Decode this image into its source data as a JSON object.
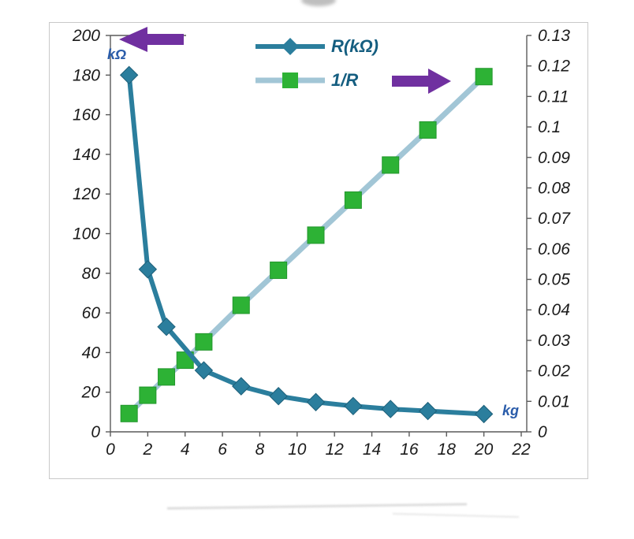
{
  "chart_data": {
    "type": "line",
    "title": "",
    "x_axis": {
      "label": "kg",
      "min": 0,
      "max": 22,
      "tick_labels": [
        "0",
        "2",
        "4",
        "6",
        "8",
        "10",
        "12",
        "14",
        "16",
        "18",
        "20",
        "22"
      ]
    },
    "left_axis": {
      "label": "kΩ",
      "min": 0,
      "max": 200,
      "tick_labels": [
        "0",
        "20",
        "40",
        "60",
        "80",
        "100",
        "120",
        "140",
        "160",
        "180",
        "200"
      ]
    },
    "right_axis": {
      "min": 0,
      "max": 0.13,
      "tick_labels": [
        "0",
        "0.01",
        "0.02",
        "0.03",
        "0.04",
        "0.05",
        "0.06",
        "0.07",
        "0.08",
        "0.09",
        "0.1",
        "0.11",
        "0.12",
        "0.13"
      ]
    },
    "arrow_color": "#7030a0",
    "legend": {
      "position": "top-center"
    },
    "series": [
      {
        "name": "R(kΩ)",
        "axis": "left",
        "marker": "diamond",
        "line_color": "#2b7e9d",
        "marker_color": "#2b7e9d",
        "points": [
          [
            1,
            180
          ],
          [
            2,
            82
          ],
          [
            3,
            53
          ],
          [
            5,
            31
          ],
          [
            7,
            23
          ],
          [
            9,
            18
          ],
          [
            11,
            15
          ],
          [
            13,
            13
          ],
          [
            15,
            11.5
          ],
          [
            17,
            10.5
          ],
          [
            20,
            9
          ]
        ]
      },
      {
        "name": "1/R",
        "axis": "right",
        "marker": "square",
        "line_color": "#a2c6d6",
        "marker_color": "#2db235",
        "points": [
          [
            1,
            0.006
          ],
          [
            2,
            0.012
          ],
          [
            3,
            0.018
          ],
          [
            4,
            0.0235
          ],
          [
            5,
            0.0295
          ],
          [
            7,
            0.0415
          ],
          [
            9,
            0.053
          ],
          [
            11,
            0.0645
          ],
          [
            13,
            0.076
          ],
          [
            15,
            0.0875
          ],
          [
            17,
            0.099
          ],
          [
            20,
            0.1165
          ]
        ]
      }
    ]
  }
}
